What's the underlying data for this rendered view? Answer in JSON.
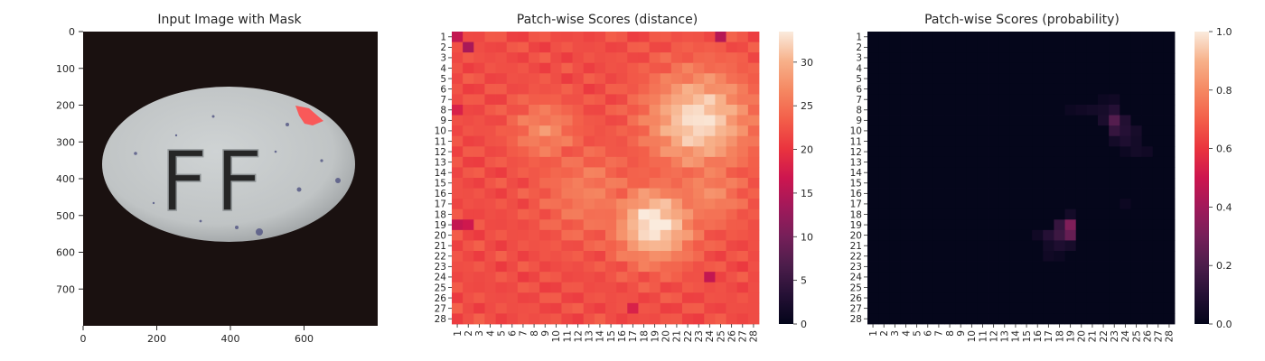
{
  "chart_data": [
    {
      "type": "image",
      "title": "Input Image with Mask",
      "xlim": [
        0,
        800
      ],
      "ylim": [
        800,
        0
      ],
      "xticks": [
        "0",
        "200",
        "400",
        "600"
      ],
      "yticks": [
        "0",
        "100",
        "200",
        "300",
        "400",
        "500",
        "600",
        "700"
      ],
      "content": {
        "background_color": "#1a1110",
        "object": "pill",
        "object_color": "#c4c8c9",
        "embossed_text": "FF",
        "mask_color": "#ff4d4d"
      }
    },
    {
      "type": "heatmap",
      "title": "Patch-wise Scores (distance)",
      "rows": [
        "1",
        "2",
        "3",
        "4",
        "5",
        "6",
        "7",
        "8",
        "9",
        "10",
        "11",
        "12",
        "13",
        "14",
        "15",
        "16",
        "17",
        "18",
        "19",
        "20",
        "21",
        "22",
        "23",
        "24",
        "25",
        "26",
        "27",
        "28"
      ],
      "cols": [
        "1",
        "2",
        "3",
        "4",
        "5",
        "6",
        "7",
        "8",
        "9",
        "10",
        "11",
        "12",
        "13",
        "14",
        "15",
        "16",
        "17",
        "18",
        "19",
        "20",
        "21",
        "22",
        "23",
        "24",
        "25",
        "26",
        "27",
        "28"
      ],
      "colorbar": {
        "min": 0,
        "max": 33.5,
        "ticks": [
          "0",
          "5",
          "10",
          "15",
          "20",
          "25",
          "30"
        ]
      },
      "pattern": {
        "base": 22,
        "hot_spots": [
          {
            "row": 9,
            "col": 23,
            "peak": 33,
            "sigma": 3.2
          },
          {
            "row": 19,
            "col": 19,
            "peak": 34,
            "sigma": 2.4
          },
          {
            "row": 10,
            "col": 9,
            "peak": 27,
            "sigma": 2.0
          },
          {
            "row": 16,
            "col": 13,
            "peak": 26,
            "sigma": 3.0
          },
          {
            "row": 16,
            "col": 24,
            "peak": 27,
            "sigma": 2.2
          }
        ],
        "cold_spots": [
          {
            "row": 2,
            "col": 2,
            "value": 14
          },
          {
            "row": 1,
            "col": 1,
            "value": 16
          },
          {
            "row": 1,
            "col": 25,
            "value": 15
          },
          {
            "row": 19,
            "col": 1,
            "value": 16
          },
          {
            "row": 19,
            "col": 2,
            "value": 17
          },
          {
            "row": 24,
            "col": 24,
            "value": 16
          },
          {
            "row": 27,
            "col": 17,
            "value": 18
          },
          {
            "row": 8,
            "col": 1,
            "value": 18
          }
        ]
      }
    },
    {
      "type": "heatmap",
      "title": "Patch-wise Scores (probability)",
      "rows": [
        "1",
        "2",
        "3",
        "4",
        "5",
        "6",
        "7",
        "8",
        "9",
        "10",
        "11",
        "12",
        "13",
        "14",
        "15",
        "16",
        "17",
        "18",
        "19",
        "20",
        "21",
        "22",
        "23",
        "24",
        "25",
        "26",
        "27",
        "28"
      ],
      "cols": [
        "1",
        "2",
        "3",
        "4",
        "5",
        "6",
        "7",
        "8",
        "9",
        "10",
        "11",
        "12",
        "13",
        "14",
        "15",
        "16",
        "17",
        "18",
        "19",
        "20",
        "21",
        "22",
        "23",
        "24",
        "25",
        "26",
        "27",
        "28"
      ],
      "colorbar": {
        "min": 0,
        "max": 1,
        "ticks": [
          "0.0",
          "0.2",
          "0.4",
          "0.6",
          "0.8",
          "1.0"
        ]
      },
      "cells": [
        {
          "row": 19,
          "col": 19,
          "value": 0.32
        },
        {
          "row": 20,
          "col": 19,
          "value": 0.26
        },
        {
          "row": 19,
          "col": 18,
          "value": 0.14
        },
        {
          "row": 20,
          "col": 18,
          "value": 0.16
        },
        {
          "row": 20,
          "col": 17,
          "value": 0.1
        },
        {
          "row": 21,
          "col": 18,
          "value": 0.08
        },
        {
          "row": 21,
          "col": 19,
          "value": 0.06
        },
        {
          "row": 21,
          "col": 17,
          "value": 0.05
        },
        {
          "row": 22,
          "col": 17,
          "value": 0.04
        },
        {
          "row": 22,
          "col": 18,
          "value": 0.03
        },
        {
          "row": 20,
          "col": 16,
          "value": 0.04
        },
        {
          "row": 18,
          "col": 19,
          "value": 0.05
        },
        {
          "row": 9,
          "col": 23,
          "value": 0.22
        },
        {
          "row": 10,
          "col": 23,
          "value": 0.14
        },
        {
          "row": 8,
          "col": 23,
          "value": 0.1
        },
        {
          "row": 9,
          "col": 24,
          "value": 0.09
        },
        {
          "row": 10,
          "col": 24,
          "value": 0.1
        },
        {
          "row": 11,
          "col": 24,
          "value": 0.08
        },
        {
          "row": 10,
          "col": 25,
          "value": 0.06
        },
        {
          "row": 11,
          "col": 25,
          "value": 0.05
        },
        {
          "row": 12,
          "col": 25,
          "value": 0.05
        },
        {
          "row": 12,
          "col": 26,
          "value": 0.04
        },
        {
          "row": 8,
          "col": 22,
          "value": 0.06
        },
        {
          "row": 9,
          "col": 22,
          "value": 0.07
        },
        {
          "row": 8,
          "col": 21,
          "value": 0.05
        },
        {
          "row": 8,
          "col": 20,
          "value": 0.04
        },
        {
          "row": 7,
          "col": 23,
          "value": 0.04
        },
        {
          "row": 11,
          "col": 23,
          "value": 0.05
        },
        {
          "row": 12,
          "col": 24,
          "value": 0.03
        },
        {
          "row": 7,
          "col": 22,
          "value": 0.03
        },
        {
          "row": 8,
          "col": 19,
          "value": 0.03
        },
        {
          "row": 17,
          "col": 24,
          "value": 0.03
        }
      ]
    }
  ]
}
